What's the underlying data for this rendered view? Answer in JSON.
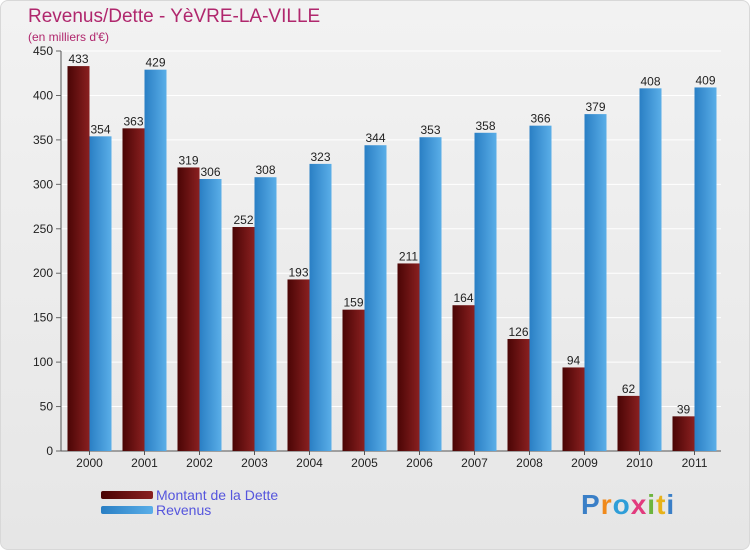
{
  "header": {
    "title": "Revenus/Dette - YèVRE-LA-VILLE",
    "subtitle": "(en milliers d'€)"
  },
  "logo": {
    "text": "Proxiti",
    "letters": [
      "P",
      "r",
      "o",
      "x",
      "i",
      "t",
      "i"
    ],
    "colors": [
      "#3a7fc7",
      "#f08a1c",
      "#2f9ed8",
      "#e23b7e",
      "#6db43e",
      "#e7b21a",
      "#3a7fc7"
    ]
  },
  "colors": {
    "dette": "#6e0f0f",
    "revenus": "#3d97dc",
    "title": "#b0276d",
    "legend_text": "#5555dd"
  },
  "chart_data": {
    "type": "bar",
    "title": "Revenus/Dette - YèVRE-LA-VILLE",
    "subtitle": "(en milliers d'€)",
    "categories": [
      "2000",
      "2001",
      "2002",
      "2003",
      "2004",
      "2005",
      "2006",
      "2007",
      "2008",
      "2009",
      "2010",
      "2011"
    ],
    "series": [
      {
        "name": "Montant de la Dette",
        "values": [
          433,
          363,
          319,
          252,
          193,
          159,
          211,
          164,
          126,
          94,
          62,
          39
        ]
      },
      {
        "name": "Revenus",
        "values": [
          354,
          429,
          306,
          308,
          323,
          344,
          353,
          358,
          366,
          379,
          408,
          409
        ]
      }
    ],
    "ylim": [
      0,
      450
    ],
    "yticks": [
      0,
      50,
      100,
      150,
      200,
      250,
      300,
      350,
      400,
      450
    ],
    "grid": true,
    "legend_position": "bottom-left"
  }
}
